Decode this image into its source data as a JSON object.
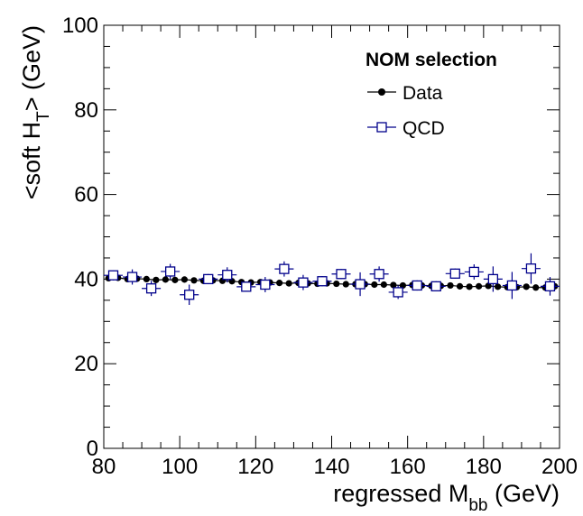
{
  "chart_data": {
    "type": "scatter",
    "title": "",
    "xlabel": {
      "main": "regressed M",
      "sub": "bb",
      "unit": " (GeV)"
    },
    "ylabel": {
      "pre": "<soft H",
      "sub": "T",
      "post": "> (GeV)"
    },
    "xlim": [
      80,
      200
    ],
    "ylim": [
      0,
      100
    ],
    "x_ticks": [
      "80",
      "100",
      "120",
      "140",
      "160",
      "180",
      "200"
    ],
    "y_ticks": [
      "0",
      "20",
      "40",
      "60",
      "80",
      "100"
    ],
    "legend": {
      "header": "NOM selection",
      "placement": "top-right",
      "entries": [
        "Data",
        "QCD"
      ]
    },
    "series": [
      {
        "name": "Data",
        "marker": "filled-circle",
        "color": "#000000",
        "x": [
          81.25,
          83.75,
          86.25,
          88.75,
          91.25,
          93.75,
          96.25,
          98.75,
          101.25,
          103.75,
          106.25,
          108.75,
          111.25,
          113.75,
          116.25,
          118.75,
          121.25,
          123.75,
          126.25,
          128.75,
          131.25,
          133.75,
          136.25,
          138.75,
          141.25,
          143.75,
          146.25,
          148.75,
          151.25,
          153.75,
          156.25,
          158.75,
          161.25,
          163.75,
          166.25,
          168.75,
          171.25,
          173.75,
          176.25,
          178.75,
          181.25,
          183.75,
          186.25,
          188.75,
          191.25,
          193.75,
          196.25,
          198.75
        ],
        "y": [
          40.2,
          40.3,
          40.0,
          40.1,
          40.0,
          39.8,
          39.9,
          39.8,
          39.9,
          39.7,
          39.6,
          39.7,
          39.6,
          39.5,
          39.3,
          39.2,
          39.3,
          39.2,
          39.1,
          39.0,
          39.1,
          39.0,
          38.9,
          39.0,
          38.9,
          38.8,
          38.8,
          38.8,
          38.7,
          38.7,
          38.6,
          38.5,
          38.6,
          38.5,
          38.4,
          38.4,
          38.5,
          38.3,
          38.2,
          38.3,
          38.4,
          38.2,
          38.1,
          38.1,
          38.2,
          38.0,
          38.0,
          38.3
        ]
      },
      {
        "name": "QCD",
        "marker": "open-square",
        "color": "#00008b",
        "x": [
          82.5,
          87.5,
          92.5,
          97.5,
          102.5,
          107.5,
          112.5,
          117.5,
          122.5,
          127.5,
          132.5,
          137.5,
          142.5,
          147.5,
          152.5,
          157.5,
          162.5,
          167.5,
          172.5,
          177.5,
          182.5,
          187.5,
          192.5,
          197.5
        ],
        "y": [
          40.9,
          40.5,
          37.8,
          41.8,
          36.3,
          40.0,
          41.0,
          38.2,
          38.7,
          42.4,
          39.2,
          39.5,
          41.2,
          38.8,
          41.2,
          36.9,
          38.5,
          38.3,
          41.3,
          41.7,
          40.0,
          38.5,
          42.5,
          38.3
        ],
        "yerr": [
          1.2,
          1.8,
          1.8,
          1.8,
          2.4,
          1.2,
          1.8,
          1.2,
          1.8,
          1.8,
          1.8,
          1.2,
          1.2,
          2.8,
          1.8,
          1.6,
          1.2,
          1.2,
          1.2,
          1.8,
          3.0,
          3.2,
          3.6,
          2.2
        ]
      }
    ]
  }
}
